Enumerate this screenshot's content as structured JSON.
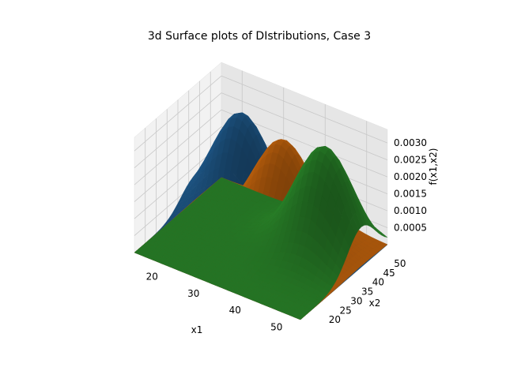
{
  "chart_data": {
    "type": "surface3d",
    "title": "3d Surface plots of DIstributions, Case 3",
    "xlabel": "x1",
    "ylabel": "x2",
    "zlabel": "f(x1,x2)",
    "xlim": [
      15,
      55
    ],
    "ylim": [
      15,
      55
    ],
    "zlim": [
      0,
      0.0034
    ],
    "xticks": [
      {
        "value": 20,
        "label": "20"
      },
      {
        "value": 30,
        "label": "30"
      },
      {
        "value": 40,
        "label": "40"
      },
      {
        "value": 50,
        "label": "50"
      }
    ],
    "yticks": [
      {
        "value": 20,
        "label": "20"
      },
      {
        "value": 25,
        "label": "25"
      },
      {
        "value": 30,
        "label": "30"
      },
      {
        "value": 35,
        "label": "35"
      },
      {
        "value": 40,
        "label": "40"
      },
      {
        "value": 45,
        "label": "45"
      },
      {
        "value": 50,
        "label": "50"
      }
    ],
    "zticks": [
      {
        "value": 0.0005,
        "label": "0.0005"
      },
      {
        "value": 0.001,
        "label": "0.0010"
      },
      {
        "value": 0.0015,
        "label": "0.0015"
      },
      {
        "value": 0.002,
        "label": "0.0020"
      },
      {
        "value": 0.0025,
        "label": "0.0025"
      },
      {
        "value": 0.003,
        "label": "0.0030"
      }
    ],
    "series": [
      {
        "color": "#1f5a8c",
        "peak_x1": 26,
        "peak_x2": 43,
        "peak_value": 0.0031
      },
      {
        "color": "#c4640d",
        "peak_x1": 36,
        "peak_x2": 43,
        "peak_value": 0.0028
      },
      {
        "color": "#2a872a",
        "peak_x1": 46,
        "peak_x2": 43,
        "peak_value": 0.0031
      }
    ],
    "grid": true
  }
}
